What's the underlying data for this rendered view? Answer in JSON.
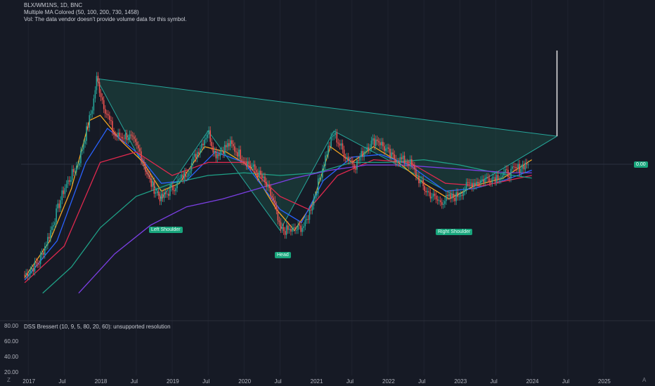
{
  "header": {
    "symbol_line": "BLX/WM1NS, 1D, BNC",
    "ma_line": "Multiple MA Colored (50, 100, 200, 730, 1458)",
    "vol_line": "Vol: The data vendor doesn't provide volume data for this symbol."
  },
  "oscillator": {
    "label": "DSS Bressert (10, 9, 5, 80, 20, 60): unsupported resolution",
    "y_ticks": [
      "80.00",
      "60.00",
      "40.00",
      "20.00"
    ]
  },
  "price_scale": {
    "current_value": "0.00"
  },
  "pattern_labels": {
    "left_shoulder": "Left Shoulder",
    "head": "Head",
    "right_shoulder": "Right Shoulder"
  },
  "time_axis": {
    "labels": [
      "2017",
      "Jul",
      "2018",
      "Jul",
      "2019",
      "Jul",
      "2020",
      "Jul",
      "2021",
      "Jul",
      "2022",
      "Jul",
      "2023",
      "Jul",
      "2024",
      "Jul",
      "2025"
    ]
  },
  "icons": {
    "bottom_left": "timezone-icon",
    "bottom_right": "auto-scale-icon"
  },
  "colors": {
    "background": "#161a25",
    "pattern_fill": "#1e4a44",
    "pattern_line": "#26a69a",
    "ma50": "#f5a623",
    "ma100": "#2962ff",
    "ma200": "#e0294e",
    "ma730": "#1fa187",
    "ma1458": "#7b3fe4",
    "candle_up": "#26a69a",
    "candle_down": "#ef5350",
    "label_bg": "#18a57c"
  },
  "chart_data": {
    "type": "line",
    "x_unit": "year",
    "price_points": [
      [
        2016.95,
        0.17
      ],
      [
        2017.15,
        0.22
      ],
      [
        2017.3,
        0.33
      ],
      [
        2017.5,
        0.5
      ],
      [
        2017.7,
        0.6
      ],
      [
        2017.9,
        0.82
      ],
      [
        2017.95,
        0.92
      ],
      [
        2018.05,
        0.82
      ],
      [
        2018.2,
        0.7
      ],
      [
        2018.4,
        0.7
      ],
      [
        2018.55,
        0.64
      ],
      [
        2018.7,
        0.52
      ],
      [
        2018.85,
        0.46
      ],
      [
        2019.0,
        0.5
      ],
      [
        2019.2,
        0.56
      ],
      [
        2019.5,
        0.72
      ],
      [
        2019.6,
        0.63
      ],
      [
        2019.8,
        0.67
      ],
      [
        2020.05,
        0.6
      ],
      [
        2020.25,
        0.54
      ],
      [
        2020.4,
        0.46
      ],
      [
        2020.5,
        0.34
      ],
      [
        2020.7,
        0.34
      ],
      [
        2020.85,
        0.36
      ],
      [
        2021.0,
        0.49
      ],
      [
        2021.15,
        0.64
      ],
      [
        2021.25,
        0.71
      ],
      [
        2021.4,
        0.63
      ],
      [
        2021.55,
        0.59
      ],
      [
        2021.7,
        0.66
      ],
      [
        2021.85,
        0.69
      ],
      [
        2022.05,
        0.62
      ],
      [
        2022.3,
        0.6
      ],
      [
        2022.5,
        0.5
      ],
      [
        2022.7,
        0.45
      ],
      [
        2022.95,
        0.47
      ],
      [
        2023.15,
        0.52
      ],
      [
        2023.4,
        0.54
      ],
      [
        2023.7,
        0.56
      ],
      [
        2023.95,
        0.6
      ]
    ],
    "moving_averages": [
      {
        "name": "MA50",
        "color": "#f5a623",
        "points": [
          [
            2016.95,
            0.16
          ],
          [
            2017.3,
            0.3
          ],
          [
            2017.6,
            0.5
          ],
          [
            2017.85,
            0.76
          ],
          [
            2018.0,
            0.78
          ],
          [
            2018.3,
            0.68
          ],
          [
            2018.6,
            0.6
          ],
          [
            2018.85,
            0.49
          ],
          [
            2019.1,
            0.52
          ],
          [
            2019.45,
            0.66
          ],
          [
            2019.75,
            0.64
          ],
          [
            2020.1,
            0.58
          ],
          [
            2020.45,
            0.42
          ],
          [
            2020.7,
            0.34
          ],
          [
            2020.95,
            0.44
          ],
          [
            2021.2,
            0.66
          ],
          [
            2021.5,
            0.6
          ],
          [
            2021.8,
            0.66
          ],
          [
            2022.1,
            0.61
          ],
          [
            2022.5,
            0.52
          ],
          [
            2022.85,
            0.46
          ],
          [
            2023.2,
            0.51
          ],
          [
            2023.6,
            0.54
          ],
          [
            2024.0,
            0.61
          ]
        ]
      },
      {
        "name": "MA100",
        "color": "#2962ff",
        "points": [
          [
            2016.95,
            0.15
          ],
          [
            2017.4,
            0.3
          ],
          [
            2017.8,
            0.6
          ],
          [
            2018.1,
            0.73
          ],
          [
            2018.5,
            0.64
          ],
          [
            2018.85,
            0.52
          ],
          [
            2019.2,
            0.53
          ],
          [
            2019.6,
            0.64
          ],
          [
            2020.0,
            0.6
          ],
          [
            2020.5,
            0.42
          ],
          [
            2020.8,
            0.37
          ],
          [
            2021.1,
            0.53
          ],
          [
            2021.5,
            0.62
          ],
          [
            2021.9,
            0.63
          ],
          [
            2022.3,
            0.59
          ],
          [
            2022.8,
            0.49
          ],
          [
            2023.2,
            0.5
          ],
          [
            2023.6,
            0.53
          ],
          [
            2024.0,
            0.57
          ]
        ]
      },
      {
        "name": "MA200",
        "color": "#e0294e",
        "points": [
          [
            2016.95,
            0.14
          ],
          [
            2017.5,
            0.28
          ],
          [
            2018.0,
            0.6
          ],
          [
            2018.5,
            0.64
          ],
          [
            2019.0,
            0.55
          ],
          [
            2019.5,
            0.6
          ],
          [
            2020.0,
            0.6
          ],
          [
            2020.5,
            0.47
          ],
          [
            2020.9,
            0.42
          ],
          [
            2021.3,
            0.55
          ],
          [
            2021.8,
            0.61
          ],
          [
            2022.3,
            0.6
          ],
          [
            2022.8,
            0.52
          ],
          [
            2023.3,
            0.51
          ],
          [
            2024.0,
            0.55
          ]
        ]
      },
      {
        "name": "MA730",
        "color": "#1fa187",
        "points": [
          [
            2017.2,
            0.1
          ],
          [
            2017.6,
            0.2
          ],
          [
            2018.0,
            0.35
          ],
          [
            2018.5,
            0.47
          ],
          [
            2019.0,
            0.52
          ],
          [
            2019.5,
            0.55
          ],
          [
            2020.0,
            0.56
          ],
          [
            2020.5,
            0.55
          ],
          [
            2021.0,
            0.56
          ],
          [
            2021.5,
            0.6
          ],
          [
            2022.0,
            0.6
          ],
          [
            2022.5,
            0.61
          ],
          [
            2023.0,
            0.59
          ],
          [
            2023.5,
            0.56
          ],
          [
            2024.0,
            0.54
          ]
        ]
      },
      {
        "name": "MA1458",
        "color": "#7b3fe4",
        "points": [
          [
            2017.7,
            0.1
          ],
          [
            2018.2,
            0.25
          ],
          [
            2018.7,
            0.36
          ],
          [
            2019.2,
            0.43
          ],
          [
            2019.7,
            0.46
          ],
          [
            2020.2,
            0.5
          ],
          [
            2020.7,
            0.54
          ],
          [
            2021.2,
            0.57
          ],
          [
            2021.7,
            0.59
          ],
          [
            2022.2,
            0.59
          ],
          [
            2022.7,
            0.58
          ],
          [
            2023.2,
            0.57
          ],
          [
            2023.7,
            0.56
          ],
          [
            2024.0,
            0.56
          ]
        ]
      }
    ],
    "pattern": {
      "name": "Head and Shoulders",
      "points": [
        [
          2017.95,
          0.92
        ],
        [
          2018.85,
          0.46
        ],
        [
          2019.5,
          0.72
        ],
        [
          2020.5,
          0.34
        ],
        [
          2021.25,
          0.72
        ],
        [
          2022.95,
          0.47
        ],
        [
          2024.35,
          0.7
        ]
      ],
      "neckline": [
        [
          2017.95,
          0.92
        ],
        [
          2024.35,
          0.7
        ]
      ]
    },
    "ylim": [
      0.0,
      1.1
    ],
    "xlim": [
      2016.9,
      2025.4
    ]
  }
}
